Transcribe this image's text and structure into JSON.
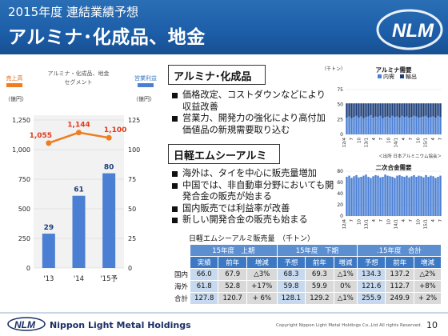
{
  "header": {
    "subtitle": "2015年度 連結業績予想",
    "title": "アルミナ･化成品、地金"
  },
  "colors": {
    "header_blue": "#1c5ea8",
    "sales_line": "#ee7d22",
    "profit_bar": "#4a7fd4"
  },
  "chart_data": [
    {
      "type": "bar",
      "legend_left": "売上高",
      "legend_center": "アルミナ・化成品、地金\nセグメント",
      "legend_right": "営業利益",
      "unit_left": "（億円）",
      "unit_right": "（億円）",
      "categories": [
        "'13",
        "'14",
        "'15予"
      ],
      "series": [
        {
          "name": "売上高",
          "kind": "line",
          "axis": "left",
          "values": [
            1055,
            1144,
            1100
          ]
        },
        {
          "name": "営業利益",
          "kind": "bar",
          "axis": "right",
          "values": [
            29,
            61,
            80
          ]
        }
      ],
      "left_ticks": [
        "0",
        "250",
        "500",
        "750",
        "1,000",
        "1,250"
      ],
      "right_ticks": [
        "0",
        "25",
        "50",
        "75",
        "100",
        "125"
      ],
      "ylim_left": [
        0,
        1250
      ],
      "ylim_right": [
        0,
        125
      ],
      "line_labels": [
        "1,055",
        "1,144",
        "1,100"
      ],
      "bar_labels": [
        "29",
        "61",
        "80"
      ]
    },
    {
      "type": "bar",
      "title": "アルミナ需要",
      "unit": "（千トン）",
      "legend": [
        "内需",
        "輸出"
      ],
      "yticks": [
        "0",
        "25",
        "50",
        "75"
      ],
      "ylim": [
        0,
        75
      ],
      "source": "＜出所 日本アルミニウム協会＞",
      "x_labels": [
        "12/4",
        "7",
        "10",
        "13/1",
        "4",
        "7",
        "10",
        "14/1",
        "4",
        "7",
        "10",
        "15/1",
        "4",
        "7"
      ],
      "series": [
        {
          "name": "内需",
          "values": [
            28,
            30,
            27,
            29,
            31,
            28,
            30,
            27,
            29,
            30,
            32,
            28,
            30,
            29,
            31,
            27,
            29,
            30,
            28,
            31,
            29,
            30,
            28,
            31,
            29,
            30,
            28,
            29,
            31,
            30,
            28,
            29,
            30,
            31,
            28,
            29,
            30,
            28,
            31,
            29
          ]
        },
        {
          "name": "輸出",
          "values": [
            24,
            22,
            25,
            23,
            21,
            24,
            22,
            25,
            23,
            22,
            20,
            24,
            22,
            23,
            21,
            25,
            23,
            22,
            24,
            21,
            23,
            22,
            24,
            21,
            23,
            22,
            24,
            23,
            21,
            22,
            24,
            23,
            22,
            21,
            24,
            23,
            22,
            24,
            21,
            23
          ]
        }
      ]
    },
    {
      "type": "bar",
      "title": "二次合金需要",
      "yticks": [
        "0",
        "20",
        "40",
        "60",
        "80"
      ],
      "ylim": [
        0,
        80
      ],
      "x_labels": [
        "12/4",
        "7",
        "10",
        "13/1",
        "4",
        "7",
        "10",
        "14/1",
        "4",
        "7",
        "10",
        "15/1",
        "4",
        "7"
      ],
      "series": [
        {
          "name": "二次合金",
          "values": [
            70,
            72,
            68,
            71,
            73,
            69,
            70,
            72,
            74,
            70,
            68,
            71,
            73,
            72,
            69,
            70,
            74,
            72,
            71,
            70,
            68,
            72,
            73,
            71,
            70,
            72,
            69,
            71,
            73,
            70,
            72,
            71,
            69,
            73,
            70,
            72,
            71,
            68,
            70,
            72
          ]
        }
      ]
    }
  ],
  "section1": {
    "heading": "アルミナ･化成品",
    "bullets": [
      "価格改定、コストダウンなどにより収益改善",
      "営業力、開発力の強化により高付加価値品の新規需要取り込む"
    ]
  },
  "section2": {
    "heading": "日軽エムシーアルミ",
    "bullets": [
      "海外は、タイを中心に販売量増加",
      "中国では、非自動車分野においても開発合金の販売が始まる",
      "国内販売では利益率が改善",
      "新しい開発合金の販売も始まる"
    ]
  },
  "table": {
    "title": "日軽エムシーアルミ販売量　（千トン）",
    "groups": [
      "15年度　上期",
      "15年度　下期",
      ".15年度　合計"
    ],
    "subheaders": [
      "実績",
      "前年",
      "増減",
      "予想",
      "前年",
      "増減",
      "予想",
      "前年",
      "増減"
    ],
    "rows": [
      {
        "label": "国内",
        "cells": [
          "66.0",
          "67.9",
          "△3%",
          "68.3",
          "69.3",
          "△1%",
          "134.3",
          "137.2",
          "△2%"
        ]
      },
      {
        "label": "海外",
        "cells": [
          "61.8",
          "52.8",
          "+17%",
          "59.8",
          "59.9",
          "0%",
          "121.6",
          "112.7",
          "+8%"
        ]
      },
      {
        "label": "合計",
        "cells": [
          "127.8",
          "120.7",
          "+ 6%",
          "128.1",
          "129.2",
          "△1%",
          "255.9",
          "249.9",
          "+ 2%"
        ]
      }
    ]
  },
  "footer": {
    "logo_text": "NLM",
    "company": "Nippon Light Metal Holdings",
    "copyright": "Copyright Nippon Light Metal Holdings Co.,Ltd All rights Reserved.",
    "page": "10"
  }
}
